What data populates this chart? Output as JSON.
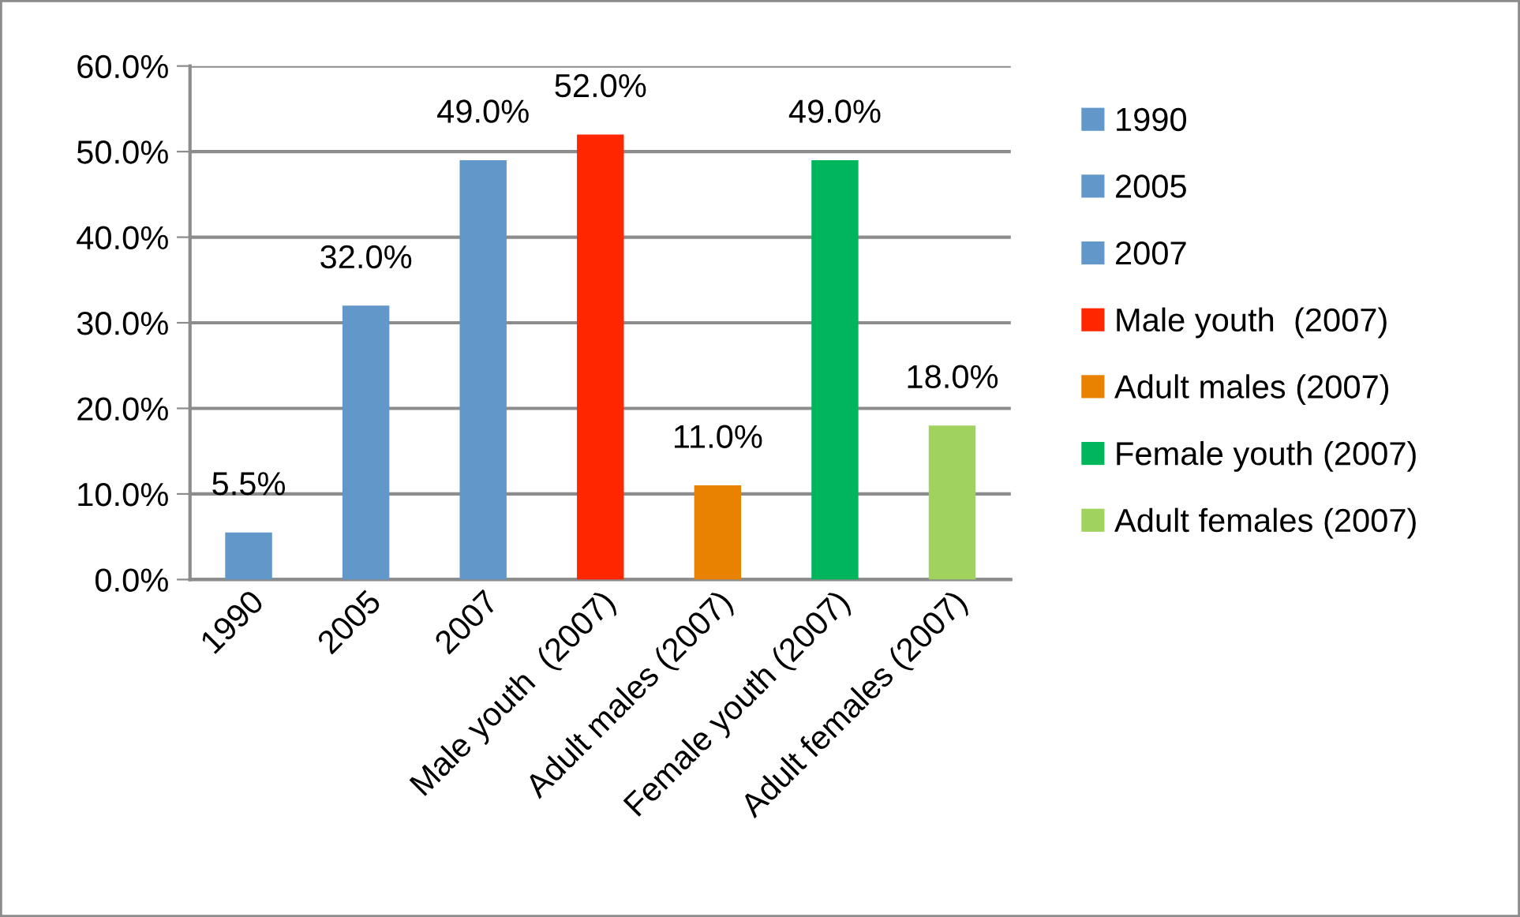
{
  "chart_data": {
    "type": "bar",
    "categories": [
      "1990",
      "2005",
      "2007",
      "Male youth  (2007)",
      "Adult males (2007)",
      "Female youth (2007)",
      "Adult females (2007)"
    ],
    "series": [
      {
        "name": "1990",
        "color": "#6297c9",
        "values": [
          5.5,
          null,
          null,
          null,
          null,
          null,
          null
        ],
        "value_labels": [
          "5.5%",
          null,
          null,
          null,
          null,
          null,
          null
        ]
      },
      {
        "name": "2005",
        "color": "#6297c9",
        "values": [
          null,
          32.0,
          null,
          null,
          null,
          null,
          null
        ],
        "value_labels": [
          null,
          "32.0%",
          null,
          null,
          null,
          null,
          null
        ]
      },
      {
        "name": "2007",
        "color": "#6297c9",
        "values": [
          null,
          null,
          49.0,
          null,
          null,
          null,
          null
        ],
        "value_labels": [
          null,
          null,
          "49.0%",
          null,
          null,
          null,
          null
        ]
      },
      {
        "name": "Male youth  (2007)",
        "color": "#ff2600",
        "values": [
          null,
          null,
          null,
          52.0,
          null,
          null,
          null
        ],
        "value_labels": [
          null,
          null,
          null,
          "52.0%",
          null,
          null,
          null
        ]
      },
      {
        "name": "Adult males (2007)",
        "color": "#e98200",
        "values": [
          null,
          null,
          null,
          null,
          11.0,
          null,
          null
        ],
        "value_labels": [
          null,
          null,
          null,
          null,
          "11.0%",
          null,
          null
        ]
      },
      {
        "name": "Female youth (2007)",
        "color": "#00b65d",
        "values": [
          null,
          null,
          null,
          null,
          null,
          49.0,
          null
        ],
        "value_labels": [
          null,
          null,
          null,
          null,
          null,
          "49.0%",
          null
        ]
      },
      {
        "name": "Adult females (2007)",
        "color": "#9fd35d",
        "values": [
          null,
          null,
          null,
          null,
          null,
          null,
          18.0
        ],
        "value_labels": [
          null,
          null,
          null,
          null,
          null,
          null,
          "18.0%"
        ]
      }
    ],
    "ylim": [
      0,
      60
    ],
    "yticks": [
      {
        "value": 0,
        "label": "0.0%"
      },
      {
        "value": 10,
        "label": "10.0%"
      },
      {
        "value": 20,
        "label": "20.0%"
      },
      {
        "value": 30,
        "label": "30.0%"
      },
      {
        "value": 40,
        "label": "40.0%"
      },
      {
        "value": 50,
        "label": "50.0%"
      },
      {
        "value": 60,
        "label": "60.0%"
      }
    ],
    "grid": "y",
    "legend": "right"
  }
}
